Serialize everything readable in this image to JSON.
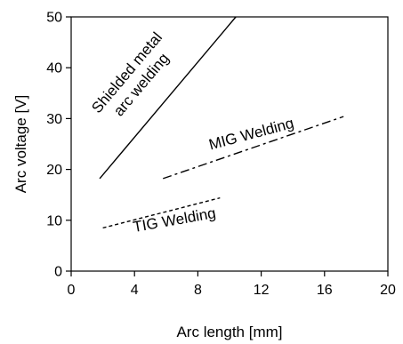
{
  "chart_data": {
    "type": "line",
    "title": "",
    "xlabel": "Arc length [mm]",
    "ylabel": "Arc voltage [V]",
    "xlim": [
      0,
      20
    ],
    "ylim": [
      0,
      50
    ],
    "xticks": [
      0,
      4,
      8,
      12,
      16,
      20
    ],
    "yticks": [
      0,
      10,
      20,
      30,
      40,
      50
    ],
    "grid": false,
    "legend": "none",
    "series": [
      {
        "name": "Shielded metal arc welding",
        "label_lines": [
          "Shielded metal",
          "arc welding"
        ],
        "line_style": "solid",
        "color": "#000000",
        "x": [
          1.8,
          10.4
        ],
        "y": [
          18.2,
          50
        ]
      },
      {
        "name": "MIG Welding",
        "label_lines": [
          "MIG Welding"
        ],
        "line_style": "dash-dot",
        "color": "#000000",
        "x": [
          5.8,
          17.2
        ],
        "y": [
          18.2,
          30.4
        ]
      },
      {
        "name": "TIG Welding",
        "label_lines": [
          "TIG Welding"
        ],
        "line_style": "dashed",
        "color": "#000000",
        "x": [
          2.0,
          9.4
        ],
        "y": [
          8.5,
          14.4
        ]
      }
    ]
  }
}
